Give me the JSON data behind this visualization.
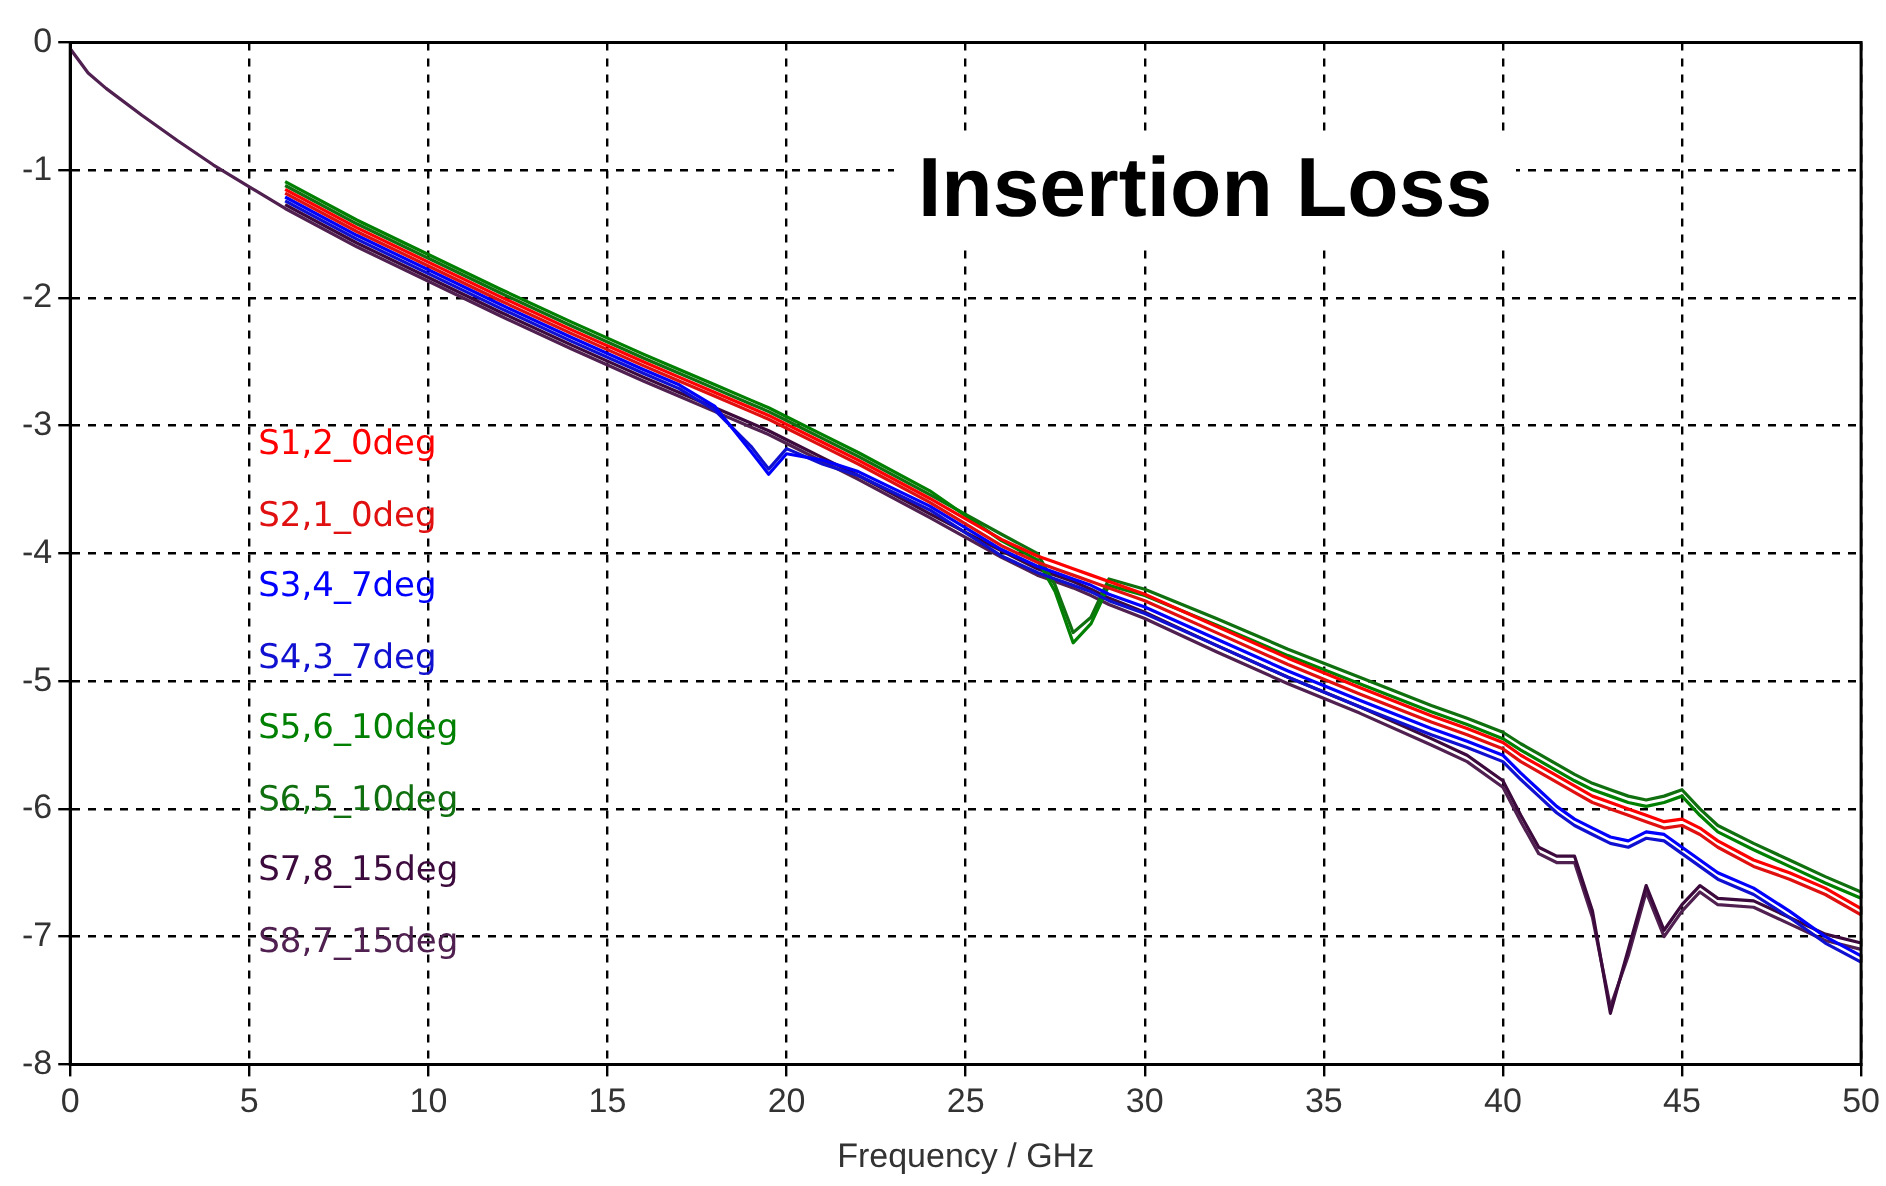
{
  "chart_data": {
    "type": "line",
    "title": "Insertion Loss",
    "xlabel": "Frequency / GHz",
    "x": [
      0,
      0.5,
      1,
      2,
      3,
      4,
      5,
      6,
      8,
      10,
      12,
      14,
      16,
      17,
      18,
      19,
      19.5,
      20,
      21,
      22,
      24,
      26,
      27,
      27.5,
      28,
      28.5,
      29,
      30,
      32,
      34,
      36,
      38,
      39,
      40,
      40.5,
      41,
      41.5,
      42,
      42.5,
      43,
      43.5,
      44,
      44.5,
      45,
      45.5,
      46,
      47,
      48,
      49,
      50
    ],
    "series": [
      {
        "name": "S1,2_0deg",
        "color": "#ff0000",
        "values": [
          null,
          null,
          null,
          null,
          null,
          null,
          null,
          -1.15,
          -1.45,
          -1.72,
          -1.99,
          -2.25,
          -2.5,
          -2.62,
          -2.74,
          -2.86,
          -2.92,
          -2.99,
          -3.13,
          -3.27,
          -3.57,
          -3.89,
          -4.02,
          -4.07,
          -4.12,
          -4.17,
          -4.22,
          -4.32,
          -4.57,
          -4.82,
          -5.05,
          -5.27,
          -5.37,
          -5.48,
          -5.58,
          -5.66,
          -5.74,
          -5.82,
          -5.9,
          -5.95,
          -6.0,
          -6.05,
          -6.1,
          -6.08,
          -6.15,
          -6.25,
          -6.4,
          -6.5,
          -6.62,
          -6.78
        ]
      },
      {
        "name": "S2,1_0deg",
        "color": "#e01010",
        "values": [
          null,
          null,
          null,
          null,
          null,
          null,
          null,
          -1.18,
          -1.48,
          -1.75,
          -2.02,
          -2.28,
          -2.53,
          -2.65,
          -2.77,
          -2.89,
          -2.95,
          -3.02,
          -3.16,
          -3.3,
          -3.6,
          -3.94,
          -4.07,
          -4.12,
          -4.17,
          -4.22,
          -4.27,
          -4.37,
          -4.62,
          -4.87,
          -5.1,
          -5.32,
          -5.42,
          -5.53,
          -5.63,
          -5.71,
          -5.79,
          -5.87,
          -5.95,
          -6.0,
          -6.05,
          -6.1,
          -6.15,
          -6.13,
          -6.2,
          -6.3,
          -6.45,
          -6.55,
          -6.67,
          -6.83
        ]
      },
      {
        "name": "S3,4_7deg",
        "color": "#0000ff",
        "values": [
          null,
          null,
          null,
          null,
          null,
          null,
          null,
          -1.21,
          -1.51,
          -1.78,
          -2.05,
          -2.31,
          -2.56,
          -2.68,
          -2.85,
          -3.2,
          -3.38,
          -3.22,
          -3.27,
          -3.36,
          -3.63,
          -3.97,
          -4.1,
          -4.15,
          -4.2,
          -4.25,
          -4.32,
          -4.42,
          -4.67,
          -4.92,
          -5.15,
          -5.37,
          -5.47,
          -5.58,
          -5.72,
          -5.85,
          -5.98,
          -6.08,
          -6.15,
          -6.22,
          -6.25,
          -6.18,
          -6.2,
          -6.3,
          -6.4,
          -6.5,
          -6.62,
          -6.8,
          -7.0,
          -7.15
        ]
      },
      {
        "name": "S4,3_7deg",
        "color": "#1010d0",
        "values": [
          null,
          null,
          null,
          null,
          null,
          null,
          null,
          -1.24,
          -1.54,
          -1.81,
          -2.08,
          -2.34,
          -2.59,
          -2.71,
          -2.88,
          -3.16,
          -3.34,
          -3.18,
          -3.3,
          -3.39,
          -3.66,
          -4.02,
          -4.15,
          -4.2,
          -4.25,
          -4.3,
          -4.37,
          -4.47,
          -4.72,
          -4.97,
          -5.2,
          -5.42,
          -5.52,
          -5.63,
          -5.77,
          -5.9,
          -6.03,
          -6.13,
          -6.2,
          -6.27,
          -6.3,
          -6.23,
          -6.25,
          -6.35,
          -6.45,
          -6.55,
          -6.67,
          -6.85,
          -7.05,
          -7.2
        ]
      },
      {
        "name": "S5,6_10deg",
        "color": "#008000",
        "values": [
          null,
          null,
          null,
          null,
          null,
          null,
          null,
          -1.09,
          -1.39,
          -1.66,
          -1.93,
          -2.19,
          -2.44,
          -2.56,
          -2.68,
          -2.8,
          -2.86,
          -2.93,
          -3.07,
          -3.21,
          -3.51,
          -3.9,
          -4.05,
          -4.3,
          -4.7,
          -4.55,
          -4.25,
          -4.33,
          -4.56,
          -4.8,
          -5.02,
          -5.24,
          -5.34,
          -5.45,
          -5.54,
          -5.62,
          -5.7,
          -5.78,
          -5.85,
          -5.9,
          -5.95,
          -5.98,
          -5.95,
          -5.9,
          -6.05,
          -6.18,
          -6.32,
          -6.45,
          -6.58,
          -6.7
        ]
      },
      {
        "name": "S6,5_10deg",
        "color": "#107010",
        "values": [
          null,
          null,
          null,
          null,
          null,
          null,
          null,
          -1.12,
          -1.42,
          -1.69,
          -1.96,
          -2.22,
          -2.47,
          -2.59,
          -2.71,
          -2.83,
          -2.89,
          -2.96,
          -3.1,
          -3.24,
          -3.54,
          -3.85,
          -4.0,
          -4.25,
          -4.62,
          -4.5,
          -4.2,
          -4.28,
          -4.51,
          -4.75,
          -4.97,
          -5.19,
          -5.29,
          -5.4,
          -5.49,
          -5.57,
          -5.65,
          -5.73,
          -5.8,
          -5.85,
          -5.9,
          -5.93,
          -5.9,
          -5.85,
          -6.0,
          -6.13,
          -6.27,
          -6.4,
          -6.53,
          -6.65
        ]
      },
      {
        "name": "S7,8_15deg",
        "color": "#3c0a3c",
        "values": [
          null,
          null,
          null,
          null,
          null,
          null,
          null,
          -1.27,
          -1.57,
          -1.84,
          -2.11,
          -2.37,
          -2.62,
          -2.74,
          -2.86,
          -2.98,
          -3.04,
          -3.11,
          -3.25,
          -3.39,
          -3.69,
          -3.98,
          -4.12,
          -4.17,
          -4.22,
          -4.28,
          -4.35,
          -4.46,
          -4.72,
          -4.97,
          -5.2,
          -5.45,
          -5.58,
          -5.78,
          -6.05,
          -6.3,
          -6.37,
          -6.37,
          -6.8,
          -7.6,
          -7.1,
          -6.6,
          -6.95,
          -6.75,
          -6.6,
          -6.7,
          -6.72,
          -6.85,
          -6.98,
          -7.05
        ]
      },
      {
        "name": "S8,7_15deg",
        "color": "#502050",
        "values": [
          -0.05,
          -0.24,
          -0.36,
          -0.57,
          -0.77,
          -0.96,
          -1.13,
          -1.3,
          -1.6,
          -1.87,
          -2.14,
          -2.4,
          -2.65,
          -2.77,
          -2.89,
          -3.01,
          -3.07,
          -3.14,
          -3.28,
          -3.42,
          -3.72,
          -4.03,
          -4.17,
          -4.22,
          -4.27,
          -4.33,
          -4.4,
          -4.51,
          -4.77,
          -5.02,
          -5.25,
          -5.5,
          -5.63,
          -5.83,
          -6.1,
          -6.35,
          -6.42,
          -6.42,
          -6.85,
          -7.55,
          -7.15,
          -6.65,
          -7.0,
          -6.8,
          -6.65,
          -6.75,
          -6.77,
          -6.9,
          -7.03,
          -7.1
        ]
      }
    ],
    "xlim": [
      0,
      50
    ],
    "xticks": [
      0,
      5,
      10,
      15,
      20,
      25,
      30,
      35,
      40,
      45,
      50
    ],
    "ylim": [
      -8,
      0
    ],
    "yticks": [
      -8,
      -7,
      -6,
      -5,
      -4,
      -3,
      -2,
      -1,
      0
    ],
    "grid": true,
    "legend": "left",
    "line_style": "solid",
    "marker": "none"
  }
}
